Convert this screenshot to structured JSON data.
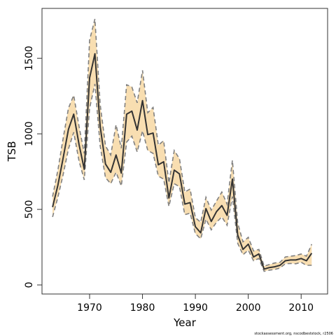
{
  "chart_data": {
    "type": "line",
    "xlabel": "Year",
    "ylabel": "TSB",
    "xlim": [
      1961,
      2015
    ],
    "ylim": [
      -60,
      1830
    ],
    "xticks": [
      1970,
      1980,
      1990,
      2000,
      2010
    ],
    "yticks": [
      0,
      500,
      1000,
      1500
    ],
    "grid": false,
    "footer": "stockassessment.org, nscodbeststock, r2506",
    "colors": {
      "band_fill": "#f8deb1",
      "band_edge": "#808080",
      "estimate_line": "#333333",
      "frame": "#333333"
    },
    "series": [
      {
        "role": "estimate",
        "x": [
          1963,
          1964,
          1965,
          1966,
          1967,
          1968,
          1969,
          1970,
          1971,
          1972,
          1973,
          1974,
          1975,
          1976,
          1977,
          1978,
          1979,
          1980,
          1981,
          1982,
          1983,
          1984,
          1985,
          1986,
          1987,
          1988,
          1989,
          1990,
          1991,
          1992,
          1993,
          1994,
          1995,
          1996,
          1997,
          1998,
          1999,
          2000,
          2001,
          2002,
          2003,
          2004,
          2005,
          2006,
          2007,
          2008,
          2009,
          2010,
          2011,
          2012
        ],
        "values": [
          515,
          660,
          840,
          1030,
          1130,
          930,
          765,
          1370,
          1530,
          1050,
          800,
          745,
          860,
          740,
          1130,
          1150,
          1025,
          1220,
          995,
          1005,
          795,
          815,
          575,
          760,
          735,
          535,
          545,
          385,
          345,
          505,
          420,
          485,
          525,
          460,
          700,
          330,
          235,
          270,
          185,
          205,
          105,
          115,
          120,
          130,
          160,
          165,
          165,
          175,
          160,
          210
        ]
      },
      {
        "role": "upper",
        "x": [
          1963,
          1964,
          1965,
          1966,
          1967,
          1968,
          1969,
          1970,
          1971,
          1972,
          1973,
          1974,
          1975,
          1976,
          1977,
          1978,
          1979,
          1980,
          1981,
          1982,
          1983,
          1984,
          1985,
          1986,
          1987,
          1988,
          1989,
          1990,
          1991,
          1992,
          1993,
          1994,
          1995,
          1996,
          1997,
          1998,
          1999,
          2000,
          2001,
          2002,
          2003,
          2004,
          2005,
          2006,
          2007,
          2008,
          2009,
          2010,
          2011,
          2012
        ],
        "values": [
          585,
          760,
          970,
          1170,
          1255,
          1050,
          870,
          1620,
          1760,
          1195,
          920,
          860,
          1060,
          905,
          1325,
          1310,
          1205,
          1420,
          1140,
          1175,
          925,
          955,
          675,
          890,
          835,
          615,
          635,
          445,
          415,
          580,
          495,
          555,
          615,
          535,
          825,
          410,
          285,
          315,
          225,
          235,
          125,
          135,
          145,
          150,
          185,
          190,
          195,
          205,
          190,
          270
        ]
      },
      {
        "role": "lower",
        "x": [
          1963,
          1964,
          1965,
          1966,
          1967,
          1968,
          1969,
          1970,
          1971,
          1972,
          1973,
          1974,
          1975,
          1976,
          1977,
          1978,
          1979,
          1980,
          1981,
          1982,
          1983,
          1984,
          1985,
          1986,
          1987,
          1988,
          1989,
          1990,
          1991,
          1992,
          1993,
          1994,
          1995,
          1996,
          1997,
          1998,
          1999,
          2000,
          2001,
          2002,
          2003,
          2004,
          2005,
          2006,
          2007,
          2008,
          2009,
          2010,
          2011,
          2012
        ],
        "values": [
          450,
          580,
          730,
          900,
          1010,
          820,
          695,
          1170,
          1330,
          920,
          710,
          670,
          745,
          655,
          945,
          985,
          880,
          1020,
          890,
          870,
          720,
          700,
          520,
          670,
          650,
          465,
          475,
          340,
          305,
          435,
          365,
          415,
          450,
          395,
          585,
          275,
          200,
          230,
          160,
          175,
          90,
          98,
          102,
          112,
          140,
          142,
          140,
          150,
          130,
          130
        ]
      }
    ]
  }
}
